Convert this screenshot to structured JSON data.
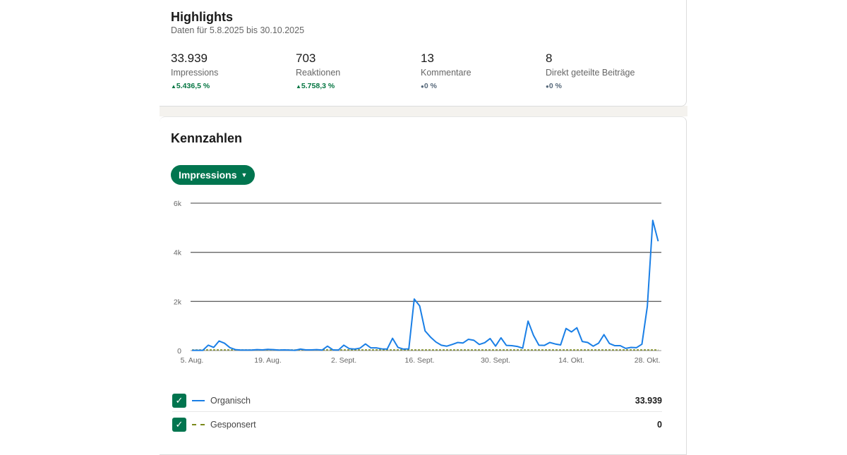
{
  "highlights": {
    "title": "Highlights",
    "subtitle": "Daten für 5.8.2025 bis 30.10.2025",
    "stats": [
      {
        "value": "33.939",
        "label": "Impressions",
        "trend": "5.436,5 %",
        "dir": "up"
      },
      {
        "value": "703",
        "label": "Reaktionen",
        "trend": "5.758,3 %",
        "dir": "up"
      },
      {
        "value": "13",
        "label": "Kommentare",
        "trend": "0 %",
        "dir": "neutral"
      },
      {
        "value": "8",
        "label": "Direkt geteilte Beiträge",
        "trend": "0 %",
        "dir": "neutral"
      }
    ]
  },
  "kennzahlen": {
    "title": "Kennzahlen",
    "metric_button": "Impressions"
  },
  "legend": [
    {
      "label": "Organisch",
      "value": "33.939",
      "checked": true,
      "color": "#1a7fe6"
    },
    {
      "label": "Gesponsert",
      "value": "0",
      "checked": true,
      "color": "#7a8a1a"
    }
  ],
  "chart_data": {
    "type": "line",
    "ylim": [
      0,
      6000
    ],
    "yticks": [
      "0",
      "2k",
      "4k",
      "6k"
    ],
    "ytick_values": [
      0,
      2000,
      4000,
      6000
    ],
    "xtick_labels": [
      "5. Aug.",
      "19. Aug.",
      "2. Sept.",
      "16. Sept.",
      "30. Sept.",
      "14. Okt.",
      "28. Okt."
    ],
    "xtick_index": [
      0,
      14,
      28,
      42,
      56,
      70,
      84
    ],
    "x_start": "5.8.2025",
    "x_end": "30.10.2025",
    "series": [
      {
        "name": "Organisch",
        "values": [
          10,
          10,
          10,
          220,
          130,
          390,
          300,
          120,
          40,
          20,
          20,
          20,
          40,
          30,
          50,
          40,
          20,
          30,
          20,
          10,
          60,
          30,
          30,
          40,
          20,
          180,
          30,
          20,
          220,
          80,
          60,
          100,
          270,
          110,
          110,
          70,
          60,
          500,
          130,
          60,
          70,
          2100,
          1820,
          800,
          550,
          350,
          220,
          180,
          250,
          330,
          310,
          460,
          420,
          250,
          320,
          490,
          180,
          520,
          210,
          200,
          170,
          100,
          1200,
          620,
          220,
          210,
          330,
          270,
          230,
          900,
          760,
          930,
          370,
          330,
          180,
          300,
          650,
          290,
          200,
          200,
          90,
          130,
          120,
          260,
          1800,
          5300,
          4450
        ]
      },
      {
        "name": "Gesponsert",
        "values": "zero"
      }
    ]
  }
}
